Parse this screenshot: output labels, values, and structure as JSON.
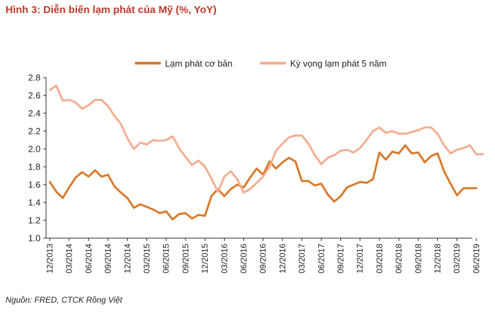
{
  "figure": {
    "title": "Hình 3: Diễn biến lạm phát của Mỹ (%, YoY)",
    "source": "Nguồn: FRED, CTCK Rồng Việt"
  },
  "colors": {
    "core": "#d97a2b",
    "expect": "#f4ad91",
    "axis": "#222222",
    "title": "#c0392b"
  },
  "chart_data": {
    "type": "line",
    "title": "Hình 3: Diễn biến lạm phát của Mỹ (%, YoY)",
    "xlabel": "",
    "ylabel": "",
    "ylim": [
      1.0,
      2.8
    ],
    "yticks": [
      "1.0",
      "1.2",
      "1.4",
      "1.6",
      "1.8",
      "2.0",
      "2.2",
      "2.4",
      "2.6",
      "2.8"
    ],
    "grid": false,
    "legend_position": "top",
    "x_start": "12/2013",
    "x_ticks": [
      "12/2013",
      "03/2014",
      "06/2014",
      "09/2014",
      "12/2014",
      "03/2015",
      "06/2015",
      "09/2015",
      "12/2015",
      "03/2016",
      "06/2016",
      "09/2016",
      "12/2016",
      "03/2017",
      "06/2017",
      "09/2017",
      "12/2017",
      "03/2018",
      "06/2018",
      "09/2018",
      "12/2018",
      "03/2019",
      "06/2019"
    ],
    "series": [
      {
        "name": "Lạm phát cơ bản",
        "values": [
          1.63,
          1.52,
          1.45,
          1.57,
          1.68,
          1.74,
          1.69,
          1.76,
          1.69,
          1.71,
          1.58,
          1.51,
          1.45,
          1.34,
          1.38,
          1.35,
          1.32,
          1.28,
          1.3,
          1.21,
          1.27,
          1.28,
          1.22,
          1.26,
          1.25,
          1.47,
          1.55,
          1.47,
          1.55,
          1.6,
          1.57,
          1.68,
          1.78,
          1.71,
          1.86,
          1.78,
          1.85,
          1.9,
          1.86,
          1.64,
          1.64,
          1.59,
          1.61,
          1.49,
          1.41,
          1.47,
          1.57,
          1.6,
          1.63,
          1.62,
          1.66,
          1.96,
          1.88,
          1.97,
          1.95,
          2.04,
          1.95,
          1.96,
          1.85,
          1.92,
          1.95,
          1.75,
          1.61,
          1.48,
          1.56,
          1.56,
          1.56
        ]
      },
      {
        "name": "Kỳ vọng lạm phát 5 năm",
        "values": [
          2.66,
          2.71,
          2.54,
          2.55,
          2.52,
          2.45,
          2.49,
          2.55,
          2.55,
          2.48,
          2.37,
          2.28,
          2.12,
          2.0,
          2.07,
          2.05,
          2.1,
          2.09,
          2.1,
          2.14,
          2.01,
          1.91,
          1.82,
          1.87,
          1.8,
          1.67,
          1.52,
          1.69,
          1.75,
          1.66,
          1.51,
          1.55,
          1.62,
          1.69,
          1.8,
          1.98,
          2.06,
          2.13,
          2.15,
          2.15,
          2.06,
          1.93,
          1.83,
          1.9,
          1.93,
          1.98,
          1.99,
          1.96,
          2.01,
          2.1,
          2.2,
          2.24,
          2.18,
          2.2,
          2.17,
          2.17,
          2.19,
          2.21,
          2.24,
          2.24,
          2.17,
          2.04,
          1.95,
          1.99,
          2.01,
          2.04,
          1.94,
          1.94
        ]
      }
    ]
  }
}
